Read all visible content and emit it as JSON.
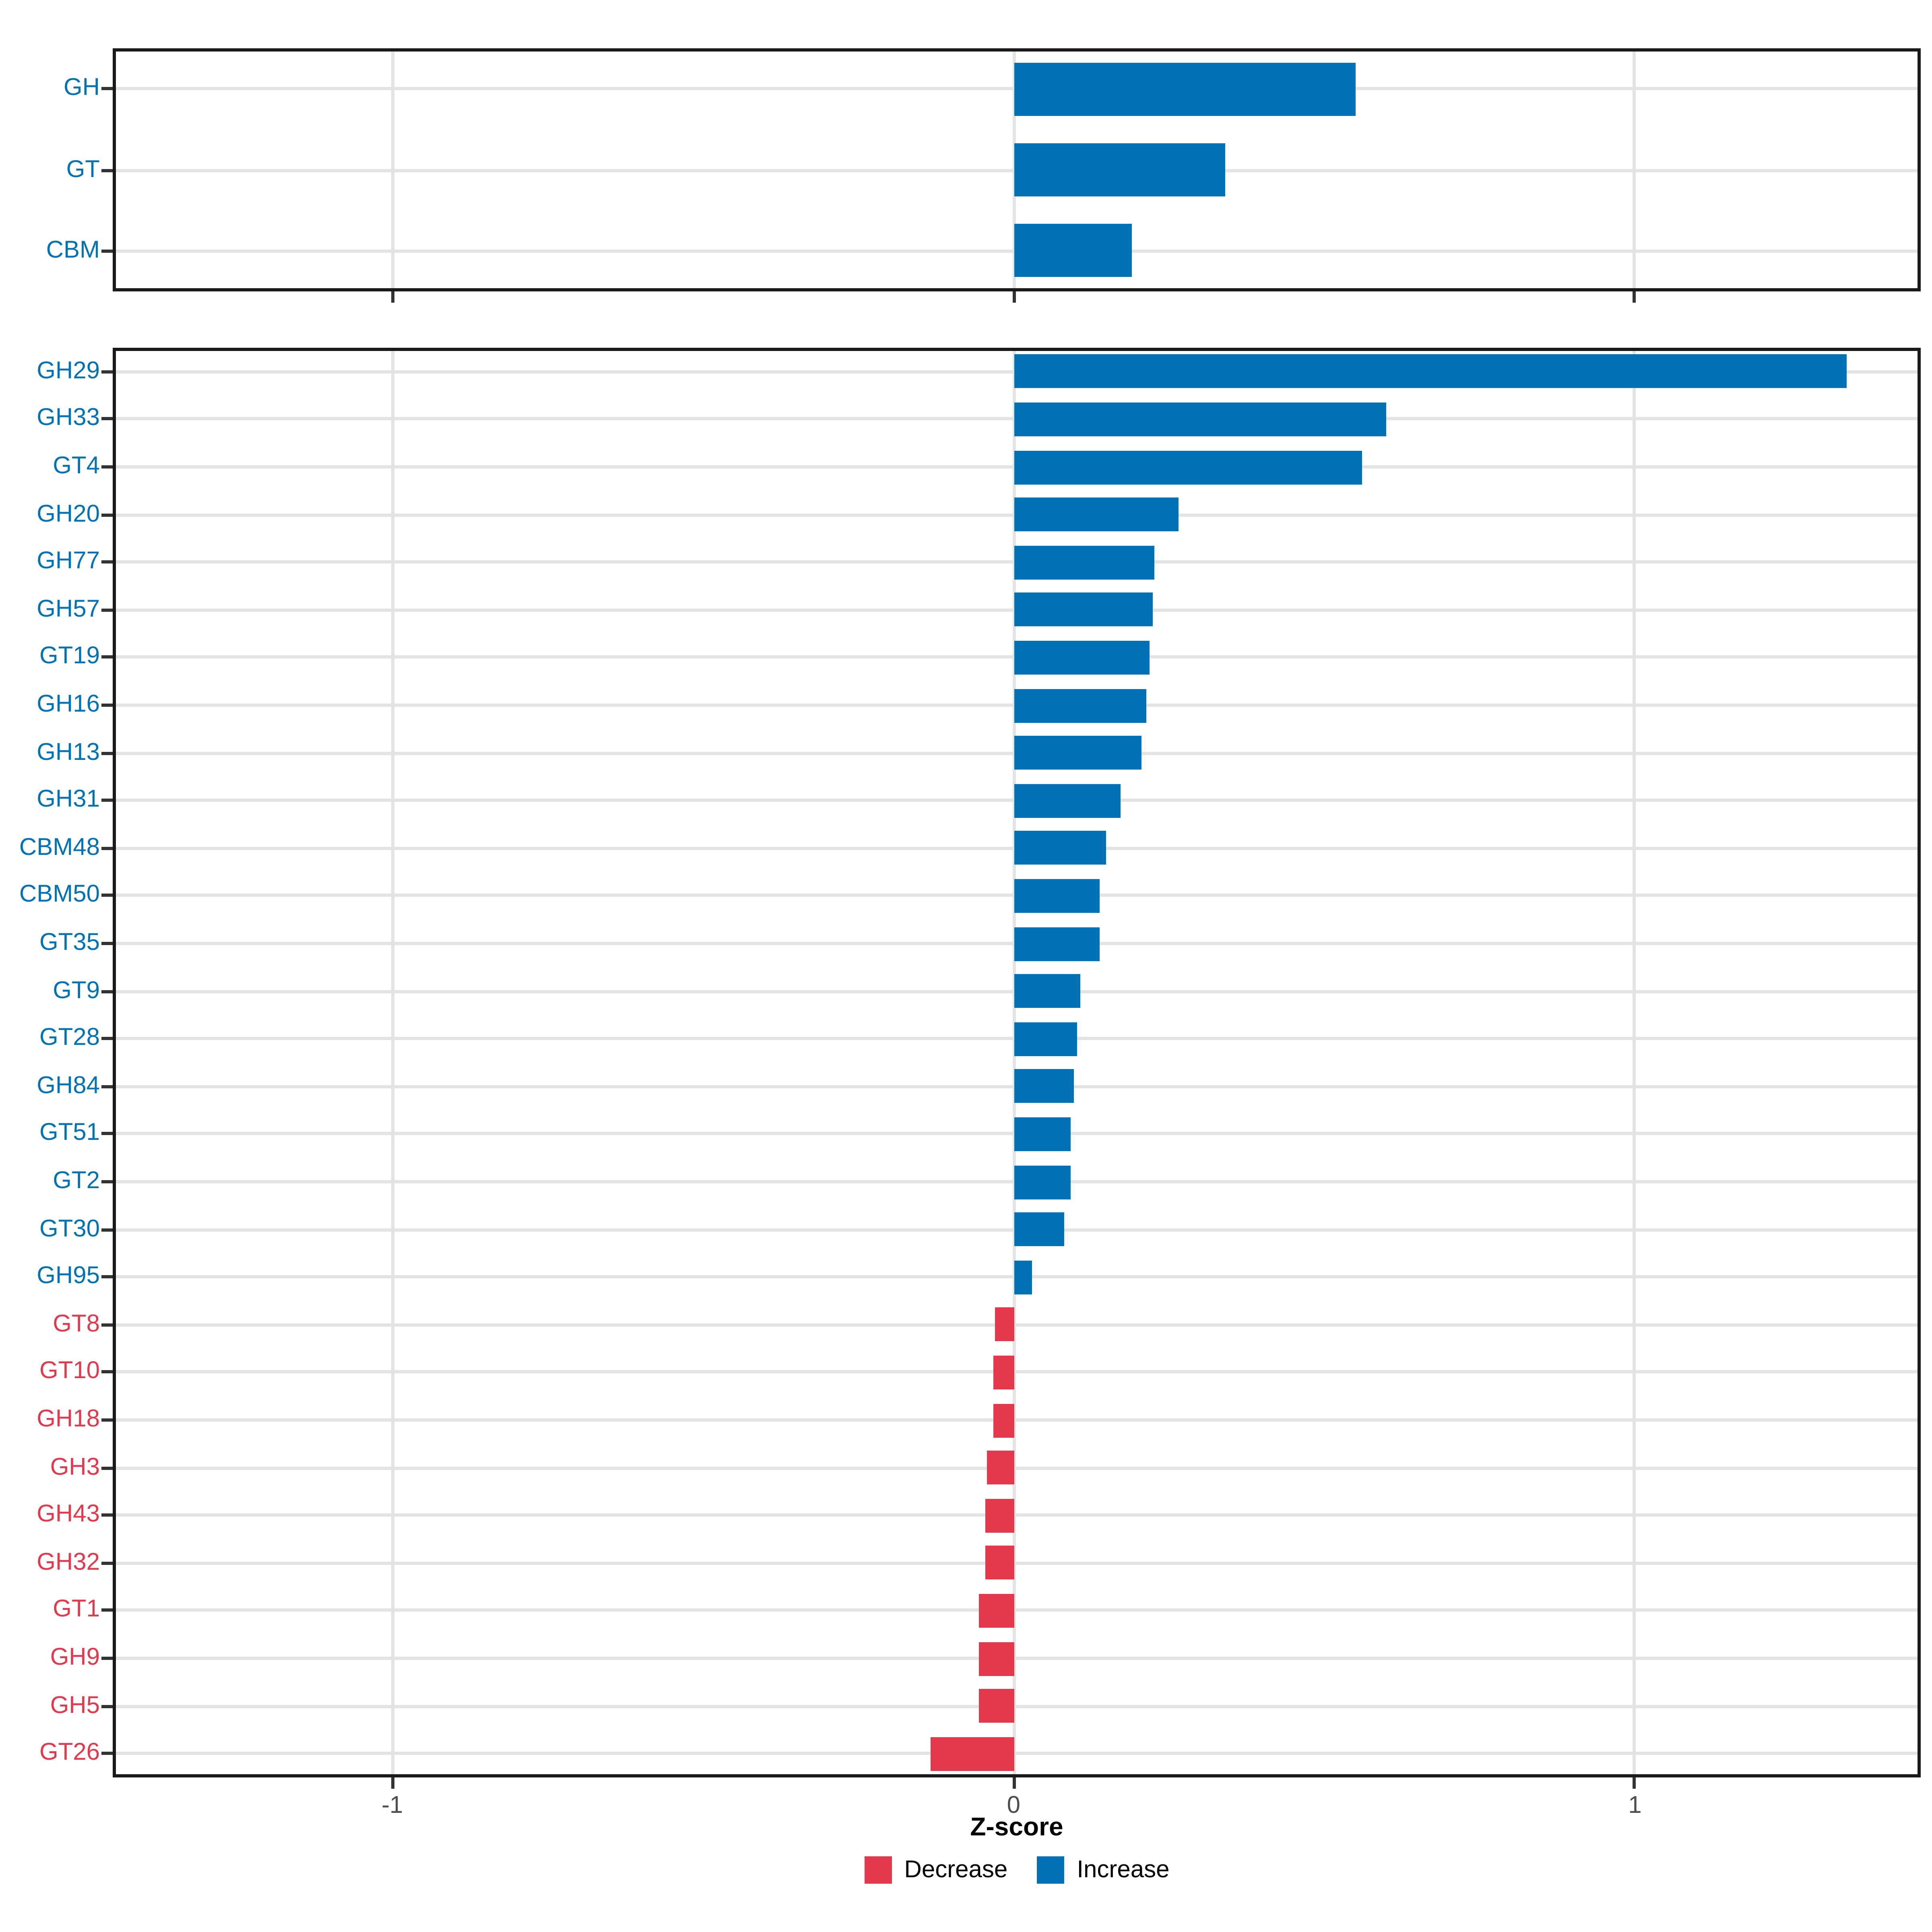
{
  "figure_type": "faceted horizontal bar chart",
  "axis": {
    "label": "Z-score",
    "tick_values": [
      -1,
      0,
      1
    ],
    "tick_labels": [
      "-1",
      "0",
      "1"
    ],
    "xlim": [
      -1.45,
      1.46
    ]
  },
  "legend": {
    "position": "bottom",
    "items": [
      {
        "label": "Decrease",
        "color": "#E4394C"
      },
      {
        "label": "Increase",
        "color": "#0072B5"
      }
    ]
  },
  "colors": {
    "increase": "#0072B5",
    "decrease": "#E4394C",
    "grid": "#E3E3E3",
    "panel_border": "#1A1A1A",
    "axis_tick": "#333333",
    "tick_text": "#4D4D4D",
    "axis_title": "#000000",
    "background": "#FFFFFF"
  },
  "chart_data": [
    {
      "type": "bar",
      "orientation": "horizontal",
      "panel": "cazyme-classes",
      "title": "",
      "xlabel": "Z-score",
      "xlim": [
        -1.45,
        1.46
      ],
      "x_breaks": [
        -1,
        0,
        1
      ],
      "grid": true,
      "legend_position": "bottom",
      "categories": [
        "GH",
        "GT",
        "CBM"
      ],
      "values": [
        0.55,
        0.34,
        0.19
      ],
      "groups": [
        "Increase",
        "Increase",
        "Increase"
      ]
    },
    {
      "type": "bar",
      "orientation": "horizontal",
      "panel": "cazyme-families",
      "title": "",
      "xlabel": "Z-score",
      "xlim": [
        -1.45,
        1.46
      ],
      "x_breaks": [
        -1,
        0,
        1
      ],
      "grid": true,
      "legend_position": "bottom",
      "categories": [
        "GH29",
        "GH33",
        "GT4",
        "GH20",
        "GH77",
        "GH57",
        "GT19",
        "GH16",
        "GH13",
        "GH31",
        "CBM48",
        "CBM50",
        "GT35",
        "GT9",
        "GT28",
        "GH84",
        "GT51",
        "GT2",
        "GT30",
        "GH95",
        "GT8",
        "GT10",
        "GH18",
        "GH3",
        "GH43",
        "GH32",
        "GT1",
        "GH9",
        "GH5",
        "GT26"
      ],
      "values": [
        1.34,
        0.6,
        0.56,
        0.265,
        0.227,
        0.225,
        0.22,
        0.214,
        0.205,
        0.171,
        0.149,
        0.139,
        0.138,
        0.107,
        0.102,
        0.098,
        0.093,
        0.091,
        0.081,
        0.029,
        -0.031,
        -0.032,
        -0.033,
        -0.043,
        -0.045,
        -0.046,
        -0.055,
        -0.056,
        -0.057,
        -0.134
      ],
      "groups": [
        "Increase",
        "Increase",
        "Increase",
        "Increase",
        "Increase",
        "Increase",
        "Increase",
        "Increase",
        "Increase",
        "Increase",
        "Increase",
        "Increase",
        "Increase",
        "Increase",
        "Increase",
        "Increase",
        "Increase",
        "Increase",
        "Increase",
        "Increase",
        "Decrease",
        "Decrease",
        "Decrease",
        "Decrease",
        "Decrease",
        "Decrease",
        "Decrease",
        "Decrease",
        "Decrease",
        "Decrease"
      ]
    }
  ]
}
